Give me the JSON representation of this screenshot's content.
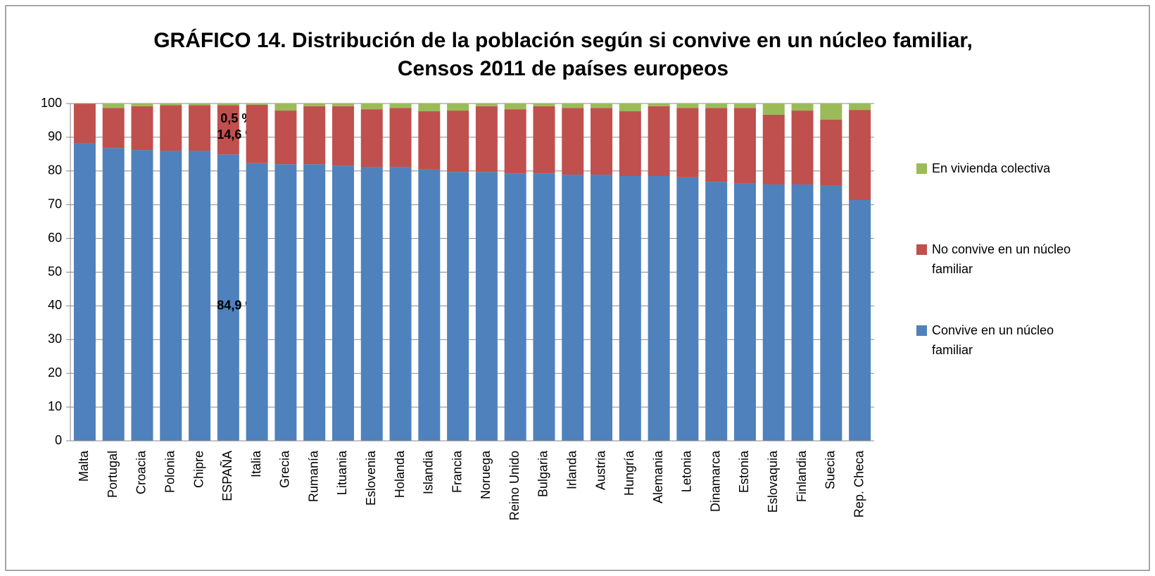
{
  "chart_data": {
    "type": "stacked_bar",
    "title": "GRÁFICO 14. Distribución de la población según si convive en un núcleo familiar,\nCensos 2011 de países europeos",
    "categories": [
      "Malta",
      "Portugal",
      "Croacia",
      "Polonia",
      "Chipre",
      "ESPAÑA",
      "Italia",
      "Grecia",
      "Rumanía",
      "Lituania",
      "Eslovenia",
      "Holanda",
      "Islandia",
      "Francia",
      "Noruega",
      "Reino Unido",
      "Bulgaria",
      "Irlanda",
      "Austria",
      "Hungría",
      "Alemania",
      "Letonia",
      "Dinamarca",
      "Estonia",
      "Eslovaquia",
      "Finlandia",
      "Suecia",
      "Rep. Checa"
    ],
    "series": [
      {
        "name": "Convive en un núcleo familiar",
        "color": "#4f81bd",
        "values": [
          88.3,
          86.8,
          86.2,
          86.0,
          86.0,
          84.9,
          82.3,
          82.0,
          82.0,
          81.6,
          81.2,
          81.2,
          80.4,
          79.7,
          79.7,
          79.3,
          79.3,
          78.9,
          78.9,
          78.5,
          78.5,
          78.1,
          76.8,
          76.4,
          76.0,
          76.0,
          75.6,
          71.4
        ],
        "value_labels": [
          null,
          null,
          null,
          null,
          null,
          "84,9 %",
          null,
          null,
          null,
          null,
          null,
          null,
          null,
          null,
          null,
          null,
          null,
          null,
          null,
          null,
          null,
          null,
          null,
          null,
          null,
          null,
          null,
          null
        ]
      },
      {
        "name": "No convive en un núcleo familiar",
        "color": "#c0504d",
        "values": [
          11.6,
          11.9,
          13.0,
          13.5,
          13.5,
          14.6,
          17.3,
          15.9,
          17.2,
          17.6,
          17.1,
          17.5,
          17.3,
          18.2,
          19.5,
          19.0,
          19.9,
          19.8,
          19.8,
          19.2,
          20.7,
          20.6,
          21.9,
          22.3,
          20.7,
          21.9,
          19.6,
          26.7
        ],
        "value_labels": [
          null,
          null,
          null,
          null,
          null,
          "14,6 %",
          null,
          null,
          null,
          null,
          null,
          null,
          null,
          null,
          null,
          null,
          null,
          null,
          null,
          null,
          null,
          null,
          null,
          null,
          null,
          null,
          null,
          null
        ]
      },
      {
        "name": "En vivienda colectiva",
        "color": "#9bbb59",
        "values": [
          0.1,
          1.3,
          0.8,
          0.5,
          0.5,
          0.5,
          0.4,
          2.1,
          0.8,
          0.8,
          1.7,
          1.3,
          2.3,
          2.1,
          0.8,
          1.7,
          0.8,
          1.3,
          1.3,
          2.3,
          0.8,
          1.3,
          1.3,
          1.3,
          3.3,
          2.1,
          4.8,
          1.9
        ],
        "value_labels": [
          null,
          null,
          null,
          null,
          null,
          "0,5 %",
          null,
          null,
          null,
          null,
          null,
          null,
          null,
          null,
          null,
          null,
          null,
          null,
          null,
          null,
          null,
          null,
          null,
          null,
          null,
          null,
          null,
          null
        ]
      }
    ],
    "ylim": [
      0,
      100
    ],
    "yticks": [
      0,
      10,
      20,
      30,
      40,
      50,
      60,
      70,
      80,
      90,
      100
    ],
    "grid": true,
    "legend": "right"
  }
}
